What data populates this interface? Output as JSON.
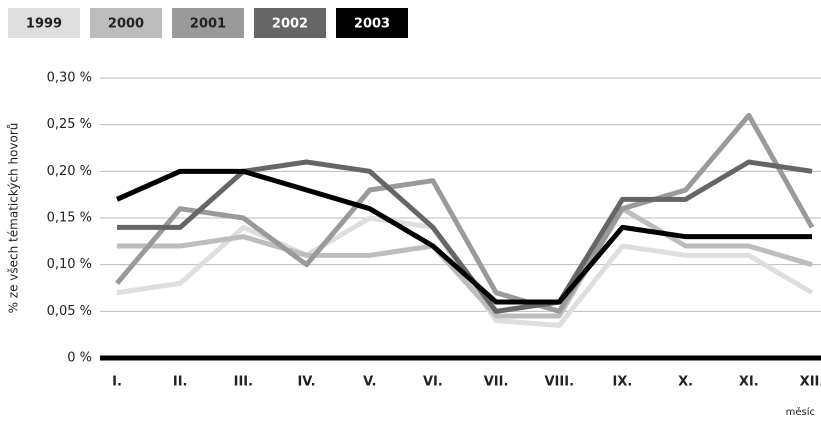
{
  "chart_data": {
    "type": "line",
    "y_label": "% ze všech tématických hovorů",
    "x_label": "měsíc",
    "categories": [
      "I.",
      "II.",
      "III.",
      "IV.",
      "V.",
      "VI.",
      "VII.",
      "VIII.",
      "IX.",
      "X.",
      "XI.",
      "XII."
    ],
    "series": [
      {
        "name": "1999",
        "color": "#dedede",
        "text_color": "#222222",
        "values": [
          0.07,
          0.08,
          0.14,
          0.11,
          0.15,
          0.14,
          0.04,
          0.035,
          0.12,
          0.11,
          0.11,
          0.07
        ]
      },
      {
        "name": "2000",
        "color": "#bdbdbd",
        "text_color": "#222222",
        "values": [
          0.12,
          0.12,
          0.13,
          0.11,
          0.11,
          0.12,
          0.045,
          0.045,
          0.16,
          0.12,
          0.12,
          0.1
        ]
      },
      {
        "name": "2001",
        "color": "#9a9a9a",
        "text_color": "#222222",
        "values": [
          0.08,
          0.16,
          0.15,
          0.1,
          0.18,
          0.19,
          0.07,
          0.05,
          0.16,
          0.18,
          0.26,
          0.14
        ]
      },
      {
        "name": "2002",
        "color": "#666666",
        "text_color": "#ffffff",
        "values": [
          0.14,
          0.14,
          0.2,
          0.21,
          0.2,
          0.14,
          0.05,
          0.06,
          0.17,
          0.17,
          0.21,
          0.2
        ]
      },
      {
        "name": "2003",
        "color": "#000000",
        "text_color": "#ffffff",
        "values": [
          0.17,
          0.2,
          0.2,
          0.18,
          0.16,
          0.12,
          0.06,
          0.06,
          0.14,
          0.13,
          0.13,
          0.13
        ]
      }
    ],
    "ylim": [
      0,
      0.3
    ],
    "yticks": [
      {
        "value": 0,
        "label": "0 %"
      },
      {
        "value": 0.05,
        "label": "0,05 %"
      },
      {
        "value": 0.1,
        "label": "0,10 %"
      },
      {
        "value": 0.15,
        "label": "0,15 %"
      },
      {
        "value": 0.2,
        "label": "0,20 %"
      },
      {
        "value": 0.25,
        "label": "0,25 %"
      },
      {
        "value": 0.3,
        "label": "0,30 %"
      }
    ],
    "grid": true
  }
}
